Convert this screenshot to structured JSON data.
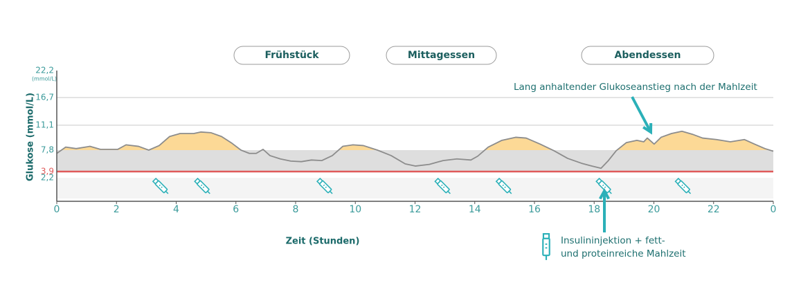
{
  "chart_data": {
    "type": "line",
    "y_axis_label": "Glukose (mmol/L)",
    "y_unit": "(mmol/L)",
    "x_axis_label": "Zeit (Stunden)",
    "meals": [
      "Frühstück",
      "Mittagessen",
      "Abendessen"
    ],
    "xlim": [
      0,
      24
    ],
    "xticks": [
      0,
      2,
      4,
      6,
      8,
      10,
      12,
      14,
      16,
      18,
      20,
      22,
      {
        "value": 24,
        "label": "0"
      }
    ],
    "ylim": [
      0,
      22.2
    ],
    "yticks": [
      {
        "value": 2.2,
        "label": "2,2"
      },
      {
        "value": 3.9,
        "label": "3,9"
      },
      {
        "value": 7.8,
        "label": "7,8"
      },
      {
        "value": 11.1,
        "label": "11,1"
      },
      {
        "value": 16.7,
        "label": "16,7"
      },
      {
        "value": 22.2,
        "label": "22,2"
      }
    ],
    "x": [
      0.0,
      0.3,
      0.65,
      1.11,
      1.46,
      2.04,
      2.32,
      2.74,
      3.08,
      3.43,
      3.78,
      4.13,
      4.59,
      4.82,
      5.17,
      5.52,
      5.87,
      6.17,
      6.45,
      6.68,
      6.91,
      7.14,
      7.49,
      7.84,
      8.19,
      8.53,
      8.88,
      9.23,
      9.58,
      9.92,
      10.27,
      10.74,
      11.2,
      11.67,
      12.01,
      12.48,
      12.94,
      13.4,
      13.87,
      14.1,
      14.45,
      14.91,
      15.37,
      15.72,
      16.19,
      16.65,
      17.11,
      17.58,
      17.92,
      18.23,
      18.46,
      18.74,
      19.08,
      19.43,
      19.66,
      19.78,
      20.01,
      20.24,
      20.59,
      20.94,
      21.29,
      21.63,
      22.1,
      22.56,
      23.03,
      23.37,
      23.72,
      24.0
    ],
    "series": [
      {
        "color": "#8c8c8c",
        "values": [
          7.2,
          8.2,
          8.0,
          8.3,
          7.9,
          7.9,
          8.5,
          8.3,
          7.8,
          8.4,
          9.6,
          10.0,
          10.0,
          10.2,
          10.1,
          9.6,
          8.7,
          7.8,
          7.2,
          7.2,
          7.9,
          6.8,
          6.2,
          5.8,
          5.7,
          6.0,
          5.9,
          6.8,
          8.3,
          8.5,
          8.4,
          7.8,
          6.8,
          5.3,
          4.9,
          5.2,
          5.9,
          6.2,
          6.0,
          6.7,
          8.2,
          9.1,
          9.5,
          9.4,
          8.6,
          7.7,
          6.3,
          5.4,
          4.9,
          4.5,
          5.8,
          7.7,
          8.8,
          9.1,
          8.9,
          9.4,
          8.6,
          9.5,
          10.0,
          10.3,
          9.9,
          9.4,
          9.2,
          8.9,
          9.2,
          8.6,
          8.0,
          7.6
        ]
      }
    ],
    "insulin_times": [
      3.5,
      4.9,
      9.0,
      12.95,
      15.0,
      18.35,
      21.0
    ],
    "annotation": "Lang anhaltender Glukoseanstieg nach der Mahlzeit",
    "insulin_note": [
      "Insulininjektion + fett-",
      "und proteinreiche Mahlzeit"
    ],
    "high_fill": "#fcd996",
    "target_color": "#dedede",
    "low_band_color": "#f4f4f4",
    "threshold_color": "#e05a5a",
    "accent_color": "#2bb0b8"
  }
}
